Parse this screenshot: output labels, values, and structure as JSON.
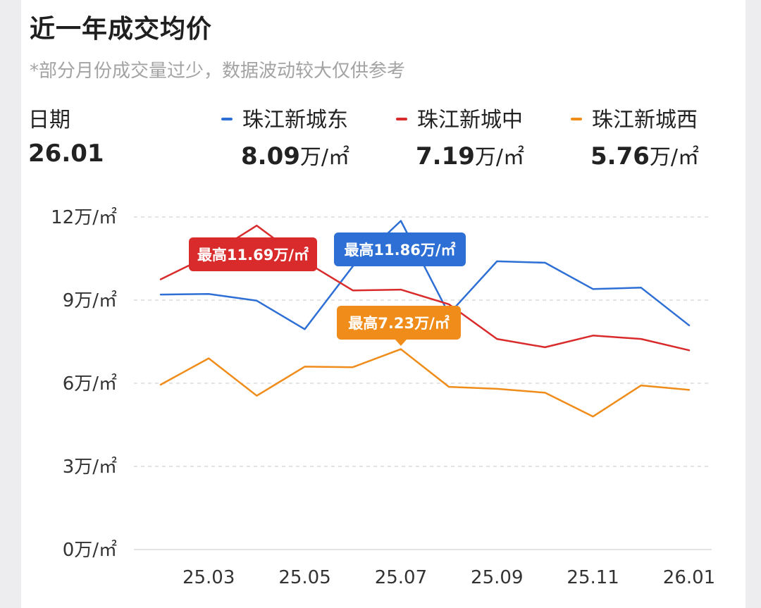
{
  "header": {
    "title": "近一年成交均价",
    "note": "*部分月份成交量过少，数据波动较大仅供参考"
  },
  "summary": {
    "date_label": "日期",
    "date_value": "26.01",
    "items": [
      {
        "name": "珠江新城东",
        "value": "8.09",
        "unit": "万/㎡",
        "color": "#2e6fd6"
      },
      {
        "name": "珠江新城中",
        "value": "7.19",
        "unit": "万/㎡",
        "color": "#d92b2b"
      },
      {
        "name": "珠江新城西",
        "value": "5.76",
        "unit": "万/㎡",
        "color": "#f08c1a"
      }
    ]
  },
  "chart_data": {
    "type": "line",
    "unit": "万/㎡",
    "x": [
      "25.02",
      "25.03",
      "25.04",
      "25.05",
      "25.06",
      "25.07",
      "25.08",
      "25.09",
      "25.10",
      "25.11",
      "25.12",
      "26.01"
    ],
    "x_tick_labels": [
      "25.03",
      "25.05",
      "25.07",
      "25.09",
      "25.11",
      "26.01"
    ],
    "y_ticks": [
      {
        "value": 0,
        "label": "0万/㎡"
      },
      {
        "value": 3,
        "label": "3万/㎡"
      },
      {
        "value": 6,
        "label": "6万/㎡"
      },
      {
        "value": 9,
        "label": "9万/㎡"
      },
      {
        "value": 12,
        "label": "12万/㎡"
      }
    ],
    "ylim": [
      0,
      12
    ],
    "grid": "dashed-horizontal",
    "series": [
      {
        "name": "珠江新城东",
        "color": "#2e6fd6",
        "values": [
          9.2,
          9.22,
          8.98,
          7.95,
          10.22,
          11.86,
          8.5,
          10.4,
          10.35,
          9.4,
          9.45,
          8.09
        ],
        "max_label": "最高11.86万/㎡",
        "max_index": 5
      },
      {
        "name": "珠江新城中",
        "color": "#d92b2b",
        "values": [
          9.75,
          10.6,
          11.69,
          10.4,
          9.35,
          9.38,
          8.85,
          7.6,
          7.3,
          7.72,
          7.6,
          7.19
        ],
        "max_label": "最高11.69万/㎡",
        "max_index": 2
      },
      {
        "name": "珠江新城西",
        "color": "#f08c1a",
        "values": [
          5.95,
          6.9,
          5.55,
          6.6,
          6.58,
          7.23,
          5.87,
          5.8,
          5.66,
          4.8,
          5.92,
          5.76
        ],
        "max_label": "最高7.23万/㎡",
        "max_index": 5
      }
    ]
  }
}
